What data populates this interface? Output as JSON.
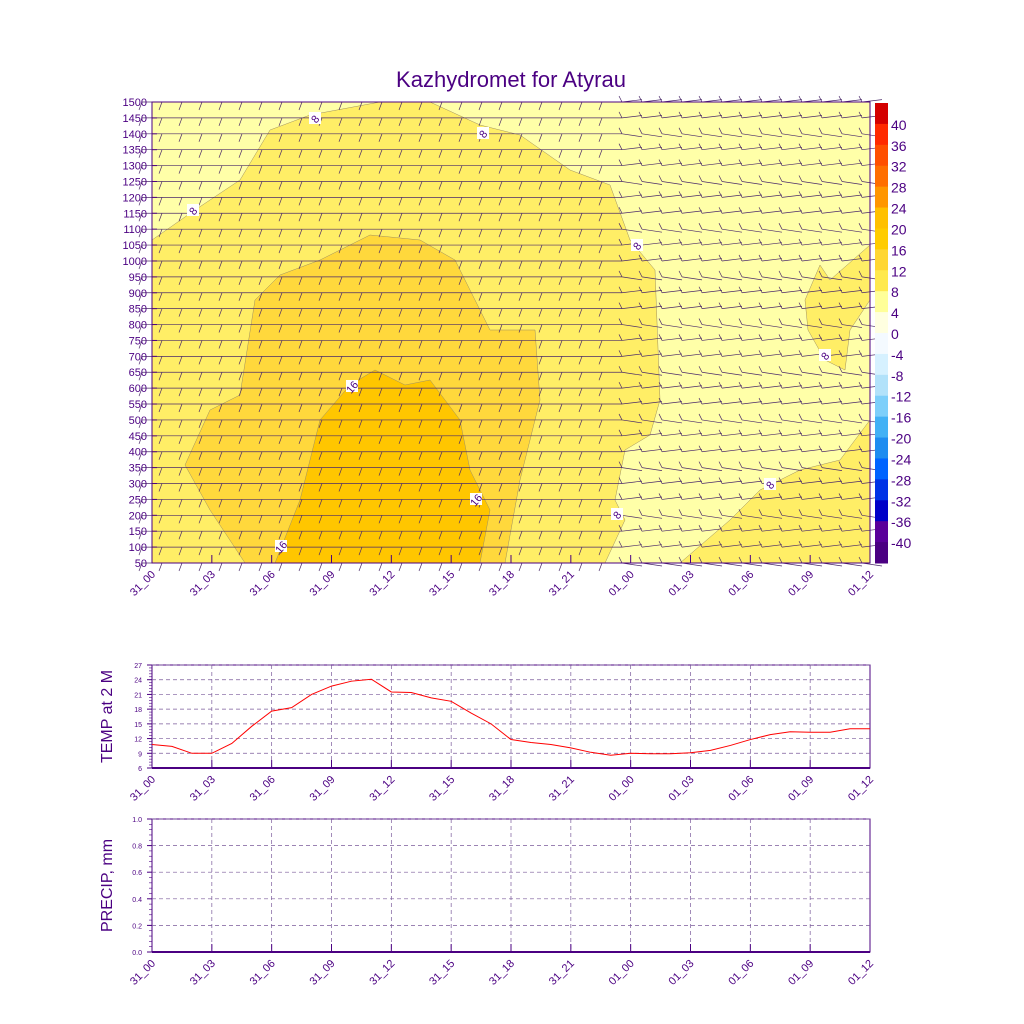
{
  "chart_data": [
    {
      "type": "heatmap",
      "title": "Kazhydromet for Atyrau",
      "x_ticks": [
        "31_00",
        "31_03",
        "31_06",
        "31_09",
        "31_12",
        "31_15",
        "31_18",
        "31_21",
        "01_00",
        "01_03",
        "01_06",
        "01_09",
        "01_12"
      ],
      "y_ticks": [
        50,
        100,
        150,
        200,
        250,
        300,
        350,
        400,
        450,
        500,
        550,
        600,
        650,
        700,
        750,
        800,
        850,
        900,
        950,
        1000,
        1050,
        1100,
        1150,
        1200,
        1250,
        1300,
        1350,
        1400,
        1450,
        1500
      ],
      "ylim": [
        50,
        1500
      ],
      "colorbar_labels": [
        "40",
        "36",
        "32",
        "28",
        "24",
        "20",
        "16",
        "12",
        "8",
        "4",
        "0",
        "-4",
        "-8",
        "-12",
        "-16",
        "-20",
        "-24",
        "-28",
        "-32",
        "-36",
        "-40"
      ],
      "colorbar_colors": [
        "#d40000",
        "#ff2a00",
        "#ff4f00",
        "#ff6e00",
        "#ff9600",
        "#ffc000",
        "#ffcc00",
        "#ffd633",
        "#ffe94d",
        "#ffff99",
        "#ffffe0",
        "#f4faff",
        "#d6f1ff",
        "#b2e2fa",
        "#7dcffa",
        "#42b1f5",
        "#1e8cf0",
        "#0064ff",
        "#0032e6",
        "#0000c8",
        "#5a009a",
        "#4b0082"
      ],
      "contour_labels": [
        "8",
        "8",
        "8",
        "8",
        "8",
        "8",
        "8",
        "16",
        "16",
        "16"
      ]
    },
    {
      "type": "line",
      "ylabel": "TEMP at 2 M",
      "x_ticks": [
        "31_00",
        "31_03",
        "31_06",
        "31_09",
        "31_12",
        "31_15",
        "31_18",
        "31_21",
        "01_00",
        "01_03",
        "01_06",
        "01_09",
        "01_12"
      ],
      "y_ticks": [
        6,
        9,
        12,
        15,
        18,
        21,
        24,
        27
      ],
      "ylim": [
        6,
        27
      ],
      "grid": true,
      "series": [
        {
          "name": "TEMP",
          "color": "#ff0000",
          "values": [
            10.8,
            10.4,
            9,
            9,
            11,
            14.5,
            17.6,
            18.3,
            21,
            22.7,
            23.7,
            24.1,
            21.5,
            21.4,
            20.3,
            19.6,
            17.2,
            15,
            11.8,
            11.2,
            10.8,
            10.1,
            9.2,
            8.6,
            9,
            8.9,
            8.9,
            9.1,
            9.6,
            10.6,
            11.8,
            12.8,
            13.4,
            13.3,
            13.3,
            14,
            14
          ]
        }
      ]
    },
    {
      "type": "line",
      "ylabel": "PRECIP, mm",
      "x_ticks": [
        "31_00",
        "31_03",
        "31_06",
        "31_09",
        "31_12",
        "31_15",
        "31_18",
        "31_21",
        "01_00",
        "01_03",
        "01_06",
        "01_09",
        "01_12"
      ],
      "y_ticks": [
        "0.0",
        "0.2",
        "0.4",
        "0.6",
        "0.8",
        "1.0"
      ],
      "ylim": [
        0,
        1
      ],
      "grid": true,
      "series": []
    }
  ]
}
